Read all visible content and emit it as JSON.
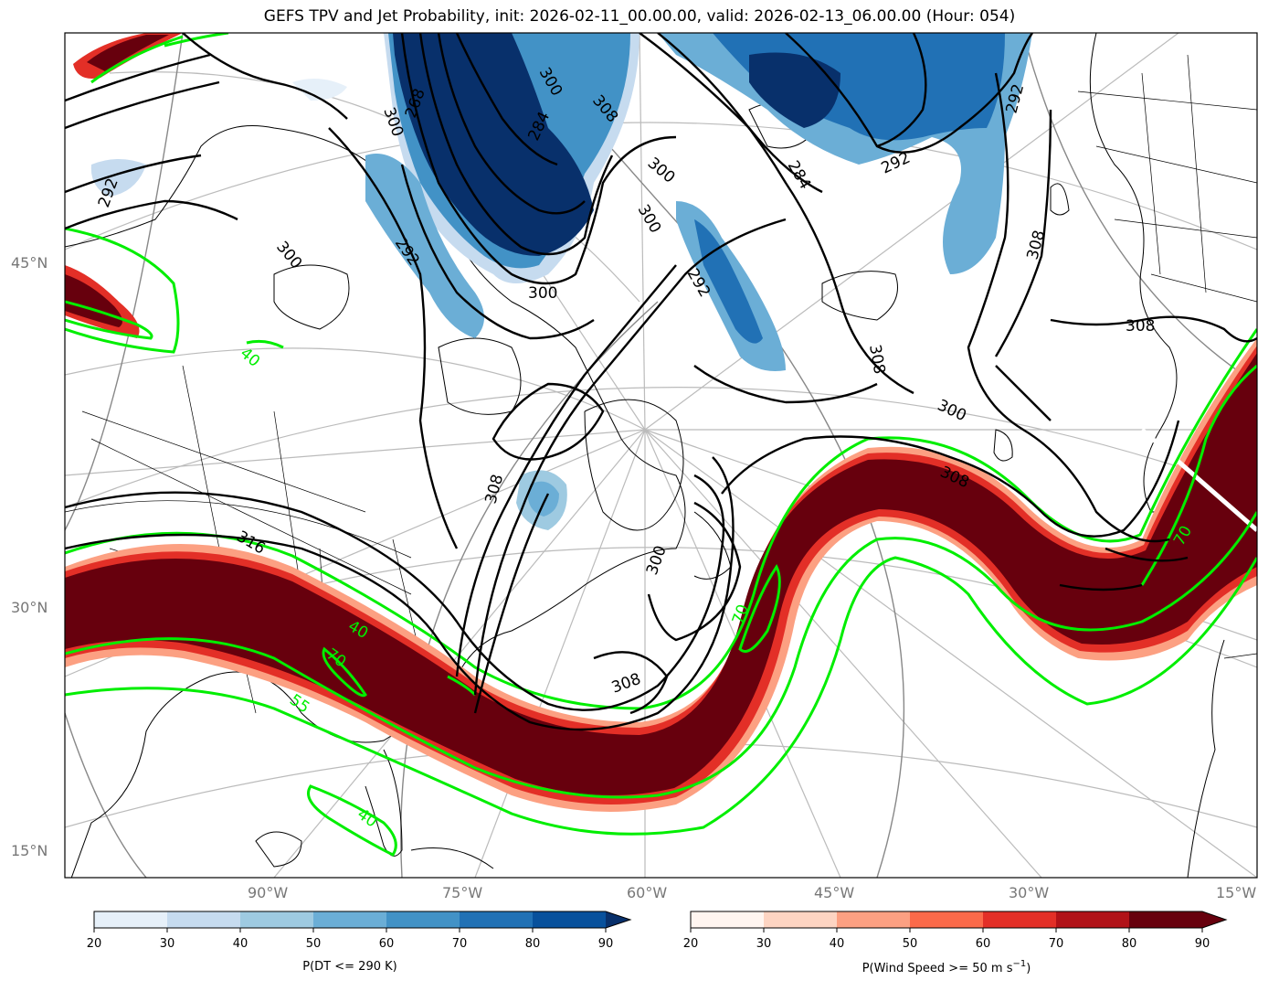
{
  "title": "GEFS TPV and Jet Probability, init: 2026-02-11_00.00.00, valid: 2026-02-13_06.00.00 (Hour: 054)",
  "lat_labels": [
    "45°N",
    "30°N",
    "15°N"
  ],
  "lon_labels": [
    "90°W",
    "75°W",
    "60°W",
    "45°W",
    "30°W",
    "15°W"
  ],
  "dt_contour_labels": [
    "300",
    "308",
    "284",
    "292",
    "300",
    "284",
    "292",
    "292",
    "300",
    "308",
    "268",
    "300",
    "292",
    "300",
    "300",
    "292",
    "308",
    "300",
    "308",
    "316",
    "308",
    "308",
    "300",
    "308"
  ],
  "wind_contour_labels": [
    "40",
    "40",
    "70",
    "55",
    "40",
    "70",
    "70"
  ],
  "colors": {
    "tpv_ramp": [
      "#e6f0f9",
      "#c6dbef",
      "#9ecae1",
      "#6baed6",
      "#4292c6",
      "#2171b5",
      "#08519c",
      "#08306b"
    ],
    "jet_ramp": [
      "#fff5f0",
      "#fdd4c2",
      "#fca082",
      "#fb6a4a",
      "#e32f27",
      "#b11218",
      "#67000d"
    ],
    "wind_contour": "#00ee00",
    "dt_contour": "#000000"
  },
  "colorbars": {
    "left": {
      "ticks": [
        "20",
        "30",
        "40",
        "50",
        "60",
        "70",
        "80",
        "90"
      ],
      "label": "P(DT <= 290 K)"
    },
    "right": {
      "ticks": [
        "20",
        "30",
        "40",
        "50",
        "60",
        "70",
        "80",
        "90"
      ],
      "label_main": "P(Wind Speed >= 50 m s",
      "label_sup": "−1",
      "label_end": ")"
    }
  }
}
